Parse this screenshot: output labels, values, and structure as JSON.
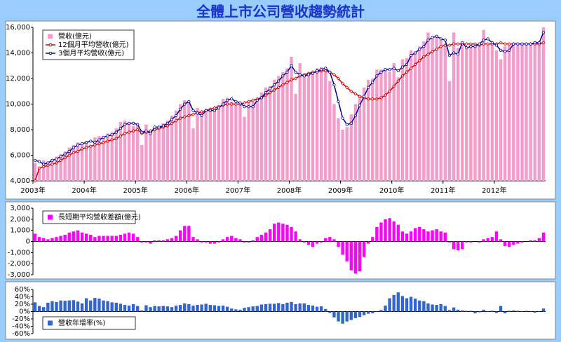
{
  "chart_data": [
    {
      "type": "combo",
      "title": "全體上市公司營收趨勢統計",
      "legend": "top-left",
      "categories": [
        "2003年",
        null,
        null,
        null,
        null,
        null,
        null,
        null,
        null,
        null,
        null,
        null,
        "2004年",
        null,
        null,
        null,
        null,
        null,
        null,
        null,
        null,
        null,
        null,
        null,
        "2005年",
        null,
        null,
        null,
        null,
        null,
        null,
        null,
        null,
        null,
        null,
        null,
        "2006年",
        null,
        null,
        null,
        null,
        null,
        null,
        null,
        null,
        null,
        null,
        null,
        "2007年",
        null,
        null,
        null,
        null,
        null,
        null,
        null,
        null,
        null,
        null,
        null,
        "2008年",
        null,
        null,
        null,
        null,
        null,
        null,
        null,
        null,
        null,
        null,
        null,
        "2009年",
        null,
        null,
        null,
        null,
        null,
        null,
        null,
        null,
        null,
        null,
        null,
        "2010年",
        null,
        null,
        null,
        null,
        null,
        null,
        null,
        null,
        null,
        null,
        null,
        "2011年",
        null,
        null,
        null,
        null,
        null,
        null,
        null,
        null,
        null,
        null,
        null,
        "2012年",
        null,
        null,
        null,
        null,
        null,
        null,
        null,
        null,
        null,
        null,
        null
      ],
      "ylim": [
        4000,
        16000
      ],
      "yticks": [
        {
          "value": 4000,
          "label": "4,000"
        },
        {
          "value": 6000,
          "label": "6,000"
        },
        {
          "value": 8000,
          "label": "8,000"
        },
        {
          "value": 10000,
          "label": "10,000"
        },
        {
          "value": 12000,
          "label": "12,000"
        },
        {
          "value": 14000,
          "label": "14,000"
        },
        {
          "value": 16000,
          "label": "16,000"
        }
      ],
      "series": [
        {
          "name": "營收(億元)",
          "type": "bar",
          "color": "#f49ccc",
          "values": [
            5400,
            5000,
            5600,
            5500,
            5700,
            5900,
            6100,
            6300,
            6600,
            6800,
            7000,
            6900,
            7100,
            6800,
            7400,
            7500,
            7400,
            7700,
            7800,
            8100,
            8600,
            8700,
            8500,
            8300,
            8400,
            6800,
            8400,
            8000,
            8100,
            8300,
            8500,
            8700,
            9100,
            9500,
            10000,
            10300,
            10200,
            8100,
            9700,
            9400,
            9400,
            9600,
            9600,
            9900,
            10400,
            10500,
            10200,
            10000,
            10100,
            9000,
            10200,
            10200,
            10400,
            10900,
            11300,
            11400,
            11900,
            12200,
            12500,
            12800,
            13700,
            10800,
            13200,
            12300,
            12400,
            12500,
            12800,
            12900,
            12800,
            11800,
            10000,
            8900,
            8000,
            8200,
            9200,
            10000,
            10600,
            11300,
            11900,
            12000,
            12700,
            12700,
            12800,
            12500,
            13200,
            12100,
            13500,
            13600,
            14200,
            14100,
            14500,
            14900,
            15600,
            15100,
            15200,
            15000,
            14700,
            11800,
            15600,
            14400,
            14500,
            14300,
            14700,
            14500,
            14800,
            15800,
            14700,
            14800,
            14200,
            13500,
            14500,
            14700,
            14800,
            14600,
            14700,
            14700,
            14800,
            14900,
            14800,
            16000
          ]
        },
        {
          "name": "12個月平均營收(億元)",
          "type": "line",
          "marker": "diamond",
          "color": "#cc0000",
          "values": [
            4000,
            5000,
            5100,
            5200,
            5300,
            5400,
            5600,
            5800,
            6000,
            6200,
            6300,
            6500,
            6600,
            6700,
            6800,
            6900,
            7000,
            7100,
            7200,
            7300,
            7500,
            7700,
            7800,
            7900,
            8000,
            7700,
            7800,
            7900,
            8000,
            8100,
            8200,
            8300,
            8500,
            8700,
            8900,
            9000,
            9100,
            9200,
            9300,
            9400,
            9500,
            9600,
            9700,
            9800,
            9900,
            10000,
            10000,
            10000,
            10000,
            10100,
            10200,
            10300,
            10400,
            10500,
            10700,
            10900,
            11100,
            11300,
            11500,
            11700,
            11900,
            12000,
            12200,
            12300,
            12400,
            12500,
            12500,
            12600,
            12600,
            12500,
            12300,
            12000,
            11600,
            11300,
            11000,
            10800,
            10600,
            10500,
            10400,
            10400,
            10400,
            10500,
            10700,
            11000,
            11400,
            11800,
            12200,
            12500,
            12800,
            13100,
            13400,
            13700,
            13900,
            14100,
            14300,
            14500,
            14600,
            14600,
            14700,
            14700,
            14700,
            14700,
            14700,
            14700,
            14600,
            14700,
            14700,
            14700,
            14700,
            14800,
            14700,
            14700,
            14700,
            14700,
            14700,
            14700,
            14700,
            14700,
            14700,
            14800
          ]
        },
        {
          "name": "3個月平均營收(億元)",
          "type": "line",
          "marker": "circle",
          "color": "#000099",
          "values": [
            5600,
            5500,
            5300,
            5400,
            5600,
            5700,
            5900,
            6100,
            6300,
            6600,
            6800,
            6900,
            7000,
            7100,
            7000,
            7200,
            7400,
            7500,
            7600,
            7800,
            8100,
            8400,
            8500,
            8500,
            8400,
            7800,
            7900,
            7700,
            8200,
            8200,
            8300,
            8500,
            8800,
            9100,
            9600,
            10000,
            10200,
            9500,
            9300,
            9100,
            9500,
            9500,
            9500,
            9700,
            10000,
            10300,
            10400,
            10200,
            10100,
            9800,
            9800,
            9800,
            10300,
            10500,
            10900,
            11200,
            11500,
            11800,
            12200,
            12500,
            13000,
            12500,
            12300,
            12200,
            12300,
            12400,
            12600,
            12700,
            12800,
            12500,
            11500,
            10200,
            8900,
            8400,
            8500,
            9100,
            9900,
            10600,
            11300,
            11700,
            12200,
            12500,
            12700,
            12700,
            12800,
            12600,
            12900,
            13100,
            13800,
            14000,
            14300,
            14500,
            15000,
            15200,
            15300,
            15100,
            15000,
            13800,
            14000,
            13900,
            14800,
            14400,
            14500,
            14500,
            14700,
            15000,
            15100,
            14800,
            14600,
            14200,
            14100,
            14200,
            14700,
            14700,
            14700,
            14700,
            14700,
            14800,
            14800,
            15600
          ]
        }
      ]
    },
    {
      "type": "bar",
      "legend": "top-left",
      "ylim": [
        -3000,
        3000
      ],
      "yticks": [
        {
          "value": -3000,
          "label": "-3,000"
        },
        {
          "value": -2000,
          "label": "-2,000"
        },
        {
          "value": -1000,
          "label": "-1,000"
        },
        0,
        {
          "value": 1000,
          "label": "1,000"
        },
        {
          "value": 2000,
          "label": "2,000"
        },
        {
          "value": 3000,
          "label": "3,000"
        }
      ],
      "series": [
        {
          "name": "長短期平均營收差額(億元)",
          "color": "#ff00ff",
          "values": [
            700,
            400,
            300,
            200,
            300,
            400,
            500,
            600,
            800,
            900,
            1000,
            800,
            700,
            600,
            400,
            500,
            500,
            500,
            500,
            500,
            600,
            700,
            800,
            700,
            400,
            -100,
            -100,
            -200,
            100,
            100,
            100,
            200,
            300,
            500,
            1000,
            1400,
            1400,
            400,
            200,
            -100,
            -100,
            -200,
            -200,
            -100,
            200,
            400,
            500,
            300,
            200,
            -100,
            -100,
            100,
            400,
            600,
            800,
            1100,
            1600,
            1700,
            1600,
            1500,
            1300,
            900,
            200,
            -100,
            -300,
            -500,
            -200,
            -100,
            300,
            400,
            200,
            -500,
            -1200,
            -1800,
            -2600,
            -2900,
            -2700,
            -1400,
            -200,
            400,
            1300,
            1700,
            2000,
            2100,
            1800,
            1500,
            900,
            700,
            900,
            1200,
            1300,
            1100,
            900,
            1000,
            1100,
            900,
            800,
            -100,
            -700,
            -800,
            -700,
            -100,
            -100,
            0,
            -100,
            200,
            300,
            400,
            900,
            200,
            -400,
            -500,
            -300,
            -200,
            -100,
            0,
            100,
            100,
            300,
            800
          ]
        }
      ]
    },
    {
      "type": "bar",
      "legend": "bottom-left",
      "ylim": [
        -60,
        60
      ],
      "yticks": [
        {
          "value": -60,
          "label": "-60%"
        },
        {
          "value": -40,
          "label": "-40%"
        },
        {
          "value": -20,
          "label": "-20%"
        },
        {
          "value": 0,
          "label": "0%"
        },
        {
          "value": 20,
          "label": "20%"
        },
        {
          "value": 40,
          "label": "40%"
        },
        {
          "value": 60,
          "label": "60%"
        }
      ],
      "series": [
        {
          "name": "營收年增率(%)",
          "color": "#3366cc",
          "values": [
            25,
            15,
            12,
            24,
            28,
            26,
            30,
            29,
            30,
            31,
            27,
            22,
            36,
            30,
            37,
            35,
            30,
            28,
            25,
            24,
            21,
            18,
            16,
            20,
            15,
            3,
            17,
            12,
            15,
            14,
            15,
            14,
            12,
            16,
            18,
            22,
            20,
            16,
            18,
            19,
            21,
            18,
            17,
            15,
            16,
            13,
            8,
            6,
            5,
            10,
            12,
            14,
            15,
            19,
            20,
            21,
            21,
            23,
            20,
            24,
            26,
            20,
            22,
            22,
            18,
            16,
            13,
            14,
            7,
            -4,
            -16,
            -27,
            -33,
            -27,
            -23,
            -18,
            -15,
            -10,
            -6,
            -5,
            -1,
            4,
            16,
            36,
            45,
            52,
            42,
            36,
            40,
            35,
            30,
            28,
            22,
            19,
            18,
            20,
            15,
            4,
            11,
            5,
            3,
            2,
            2,
            -5,
            -2,
            5,
            -1,
            2,
            -4,
            15,
            -5,
            2,
            3,
            2,
            1,
            2,
            1,
            -3,
            -1,
            8
          ]
        }
      ]
    }
  ]
}
